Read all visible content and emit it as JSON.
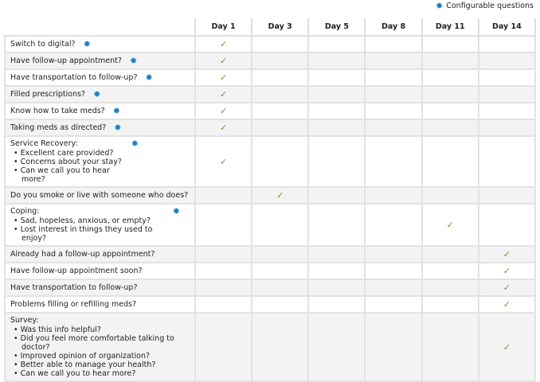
{
  "legend": {
    "icon": "gear-icon",
    "label": "Configurable questions"
  },
  "columns": [
    "Day 1",
    "Day 3",
    "Day 5",
    "Day 8",
    "Day 11",
    "Day 14"
  ],
  "rows": [
    {
      "label": "Switch to digital?",
      "gear": true,
      "items": [],
      "day": 0
    },
    {
      "label": "Have follow-up appointment?",
      "gear": true,
      "items": [],
      "day": 0
    },
    {
      "label": "Have transportation to follow-up?",
      "gear": true,
      "items": [],
      "day": 0
    },
    {
      "label": "Filled prescriptions?",
      "gear": true,
      "items": [],
      "day": 0
    },
    {
      "label": "Know how to take meds?",
      "gear": true,
      "items": [],
      "day": 0
    },
    {
      "label": "Taking meds as directed?",
      "gear": true,
      "items": [],
      "day": 0
    },
    {
      "label": "Service Recovery:",
      "gear": true,
      "items": [
        "Excellent care provided?",
        "Concerns about your stay?",
        "Can we call you to hear more?"
      ],
      "day": 0
    },
    {
      "label": "Do you smoke or live with someone who does?",
      "gear": false,
      "items": [],
      "day": 1
    },
    {
      "label": "Coping:",
      "gear": true,
      "items": [
        "Sad, hopeless, anxious, or empty?",
        "Lost interest in things they used to enjoy?"
      ],
      "day": 4
    },
    {
      "label": "Already had a follow-up appointment?",
      "gear": false,
      "items": [],
      "day": 5
    },
    {
      "label": "Have follow-up appointment soon?",
      "gear": false,
      "items": [],
      "day": 5
    },
    {
      "label": "Have transportation to follow-up?",
      "gear": false,
      "items": [],
      "day": 5
    },
    {
      "label": "Problems filling or refilling meds?",
      "gear": false,
      "items": [],
      "day": 5
    },
    {
      "label": "Survey:",
      "gear": false,
      "items": [
        "Was this info helpful?",
        "Did you feel more comfortable talking to doctor?",
        "Improved opinion of organization?",
        "Better able to manage your health?",
        "Can we call you to hear more?"
      ],
      "day": 5
    }
  ],
  "check_icon": "checkmark-icon",
  "colors": {
    "gear": "#1a7fc4",
    "check": "#6a9a2a"
  }
}
